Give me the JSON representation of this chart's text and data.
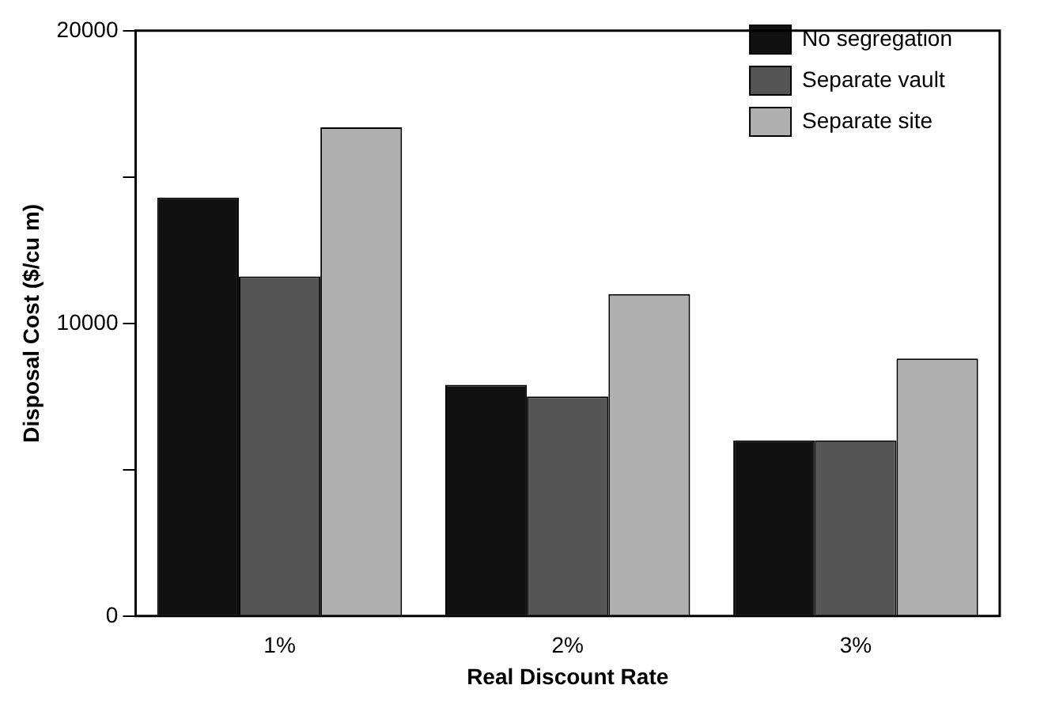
{
  "chart_data": {
    "type": "bar",
    "xlabel": "Real Discount Rate",
    "ylabel": "Disposal Cost ($/cu m)",
    "categories": [
      "1%",
      "2%",
      "3%"
    ],
    "series": [
      {
        "name": "No segregation",
        "color": "#111111",
        "values": [
          14300,
          7900,
          6000
        ]
      },
      {
        "name": "Separate vault",
        "color": "#555555",
        "values": [
          11600,
          7500,
          6000
        ]
      },
      {
        "name": "Separate site",
        "color": "#b0b0b0",
        "values": [
          16700,
          11000,
          8800
        ]
      }
    ],
    "ylim": [
      0,
      20000
    ],
    "yticks": [
      0,
      {
        "value": 5000,
        "label": null
      },
      10000,
      {
        "value": 15000,
        "label": null
      },
      20000
    ],
    "grid": false,
    "legend": "top right"
  }
}
